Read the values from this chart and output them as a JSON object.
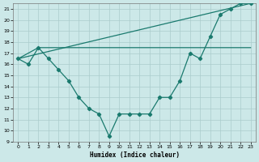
{
  "title": "",
  "xlabel": "Humidex (Indice chaleur)",
  "background_color": "#cce8e8",
  "grid_color": "#aacccc",
  "line_color": "#1a7a6e",
  "xlim": [
    -0.5,
    23.5
  ],
  "ylim": [
    9,
    21.5
  ],
  "xticks": [
    0,
    1,
    2,
    3,
    4,
    5,
    6,
    7,
    8,
    9,
    10,
    11,
    12,
    13,
    14,
    15,
    16,
    17,
    18,
    19,
    20,
    21,
    22,
    23
  ],
  "yticks": [
    9,
    10,
    11,
    12,
    13,
    14,
    15,
    16,
    17,
    18,
    19,
    20,
    21
  ],
  "line1_x": [
    0,
    1,
    2,
    3,
    4,
    5,
    6,
    7,
    8,
    9,
    10,
    11,
    12,
    13,
    14,
    15,
    16,
    17,
    18,
    19,
    20,
    21,
    22,
    23
  ],
  "line1_y": [
    16.5,
    16.0,
    17.5,
    16.5,
    15.5,
    14.5,
    13.0,
    12.0,
    11.5,
    9.5,
    11.5,
    11.5,
    11.5,
    11.5,
    13.0,
    13.0,
    14.5,
    17.0,
    16.5,
    18.5,
    20.5,
    21.0,
    21.5,
    21.5
  ],
  "line2_x": [
    0,
    2,
    23
  ],
  "line2_y": [
    16.5,
    17.5,
    17.5
  ],
  "line3_x": [
    0,
    23
  ],
  "line3_y": [
    16.5,
    21.5
  ]
}
